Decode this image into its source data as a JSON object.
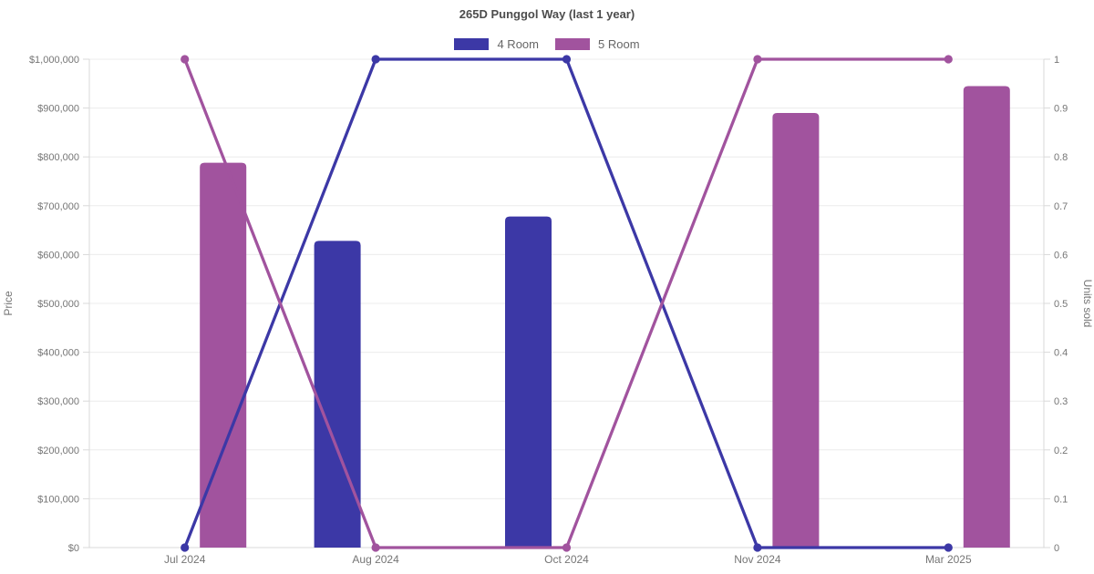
{
  "chart_data": {
    "type": "bar",
    "subtype": "combo-bar-line-dual-axis",
    "title": "265D Punggol Way (last 1 year)",
    "categories": [
      "Jul 2024",
      "Aug 2024",
      "Oct 2024",
      "Nov 2024",
      "Mar 2025"
    ],
    "series": [
      {
        "name": "4 Room",
        "color": "#3c38a6",
        "bar_axis": "left",
        "bar_prices": [
          null,
          628000,
          678000,
          null,
          null
        ],
        "line_axis": "right",
        "line_units_sold": [
          0,
          1,
          1,
          0,
          0
        ]
      },
      {
        "name": "5 Room",
        "color": "#a1539e",
        "bar_axis": "left",
        "bar_prices": [
          788000,
          null,
          null,
          890000,
          945000
        ],
        "line_axis": "right",
        "line_units_sold": [
          1,
          0,
          0,
          1,
          1
        ]
      }
    ],
    "y_left": {
      "label": "Price",
      "min": 0,
      "max": 1000000,
      "step": 100000,
      "tick_labels": [
        "$0",
        "$100,000",
        "$200,000",
        "$300,000",
        "$400,000",
        "$500,000",
        "$600,000",
        "$700,000",
        "$800,000",
        "$900,000",
        "$1,000,000"
      ]
    },
    "y_right": {
      "label": "Units sold",
      "min": 0,
      "max": 1,
      "step": 0.1,
      "tick_labels": [
        "0",
        "0.1",
        "0.2",
        "0.3",
        "0.4",
        "0.5",
        "0.6",
        "0.7",
        "0.8",
        "0.9",
        "1"
      ]
    },
    "grid": "horizontal-only",
    "legend_position": "top-center",
    "colors": {
      "background": "#ffffff",
      "gridline": "#ececec",
      "axis_line": "#d9d9d9",
      "title_text": "#4c4c4c",
      "legend_text": "#666666",
      "tick_text": "#757575"
    }
  }
}
